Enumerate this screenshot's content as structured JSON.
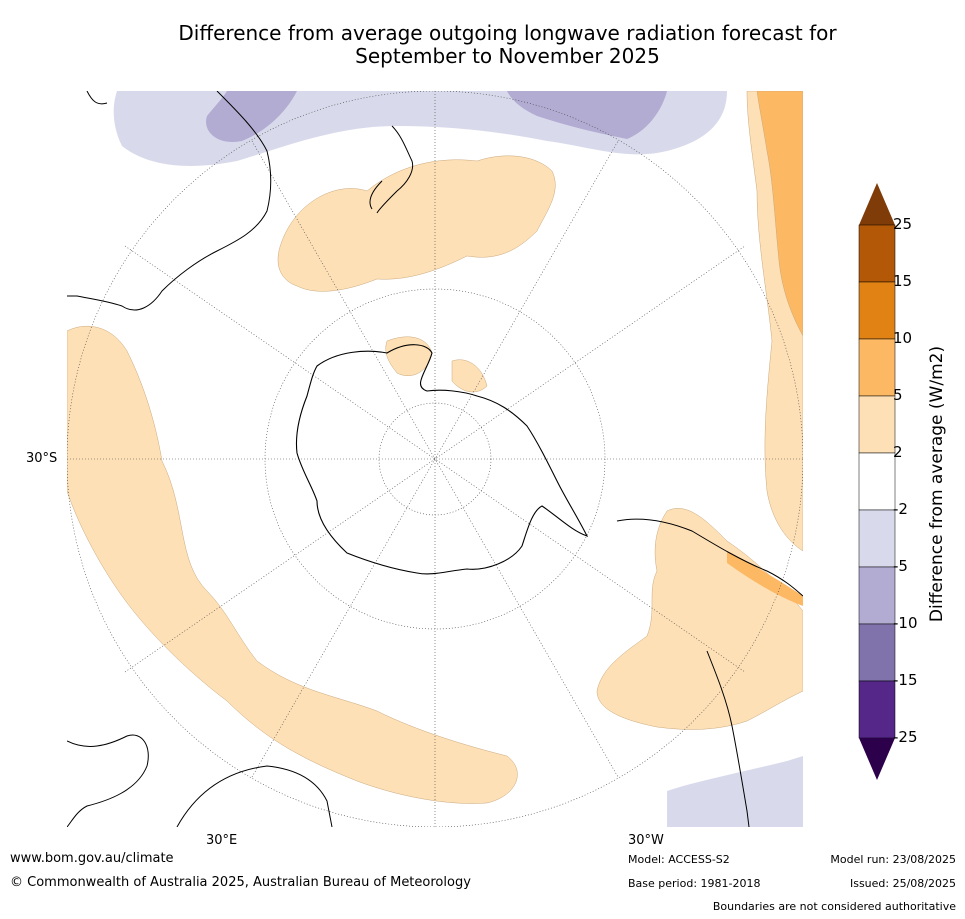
{
  "title_line1": "Difference from average outgoing longwave radiation forecast for",
  "title_line2": "September to November 2025",
  "axis": {
    "lat_label": "30°S",
    "lon_label_east": "30°E",
    "lon_label_west": "30°W"
  },
  "colorbar": {
    "title": "Difference from average (W/m2)",
    "ticks": [
      "25",
      "15",
      "10",
      "5",
      "2",
      "-2",
      "-5",
      "-10",
      "-15",
      "-25"
    ],
    "colors": {
      "gt25": "#7f3b08",
      "15_25": "#b35806",
      "10_15": "#e08214",
      "5_10": "#fdb863",
      "2_5": "#fee0b6",
      "m2_2": "#ffffff",
      "m5_m2": "#d8daeb",
      "m10_m5": "#b2abd2",
      "m15_m10": "#8073ac",
      "m25_m15": "#542788",
      "lt_m25": "#2d004b"
    }
  },
  "footer": {
    "url": "www.bom.gov.au/climate",
    "copyright": "© Commonwealth of Australia 2025, Australian Bureau of Meteorology",
    "model": "Model: ACCESS-S2",
    "base_period": "Base period: 1981-2018",
    "model_run": "Model run: 23/08/2025",
    "issued": "Issued: 25/08/2025",
    "disclaimer": "Boundaries are not considered authoritative"
  }
}
